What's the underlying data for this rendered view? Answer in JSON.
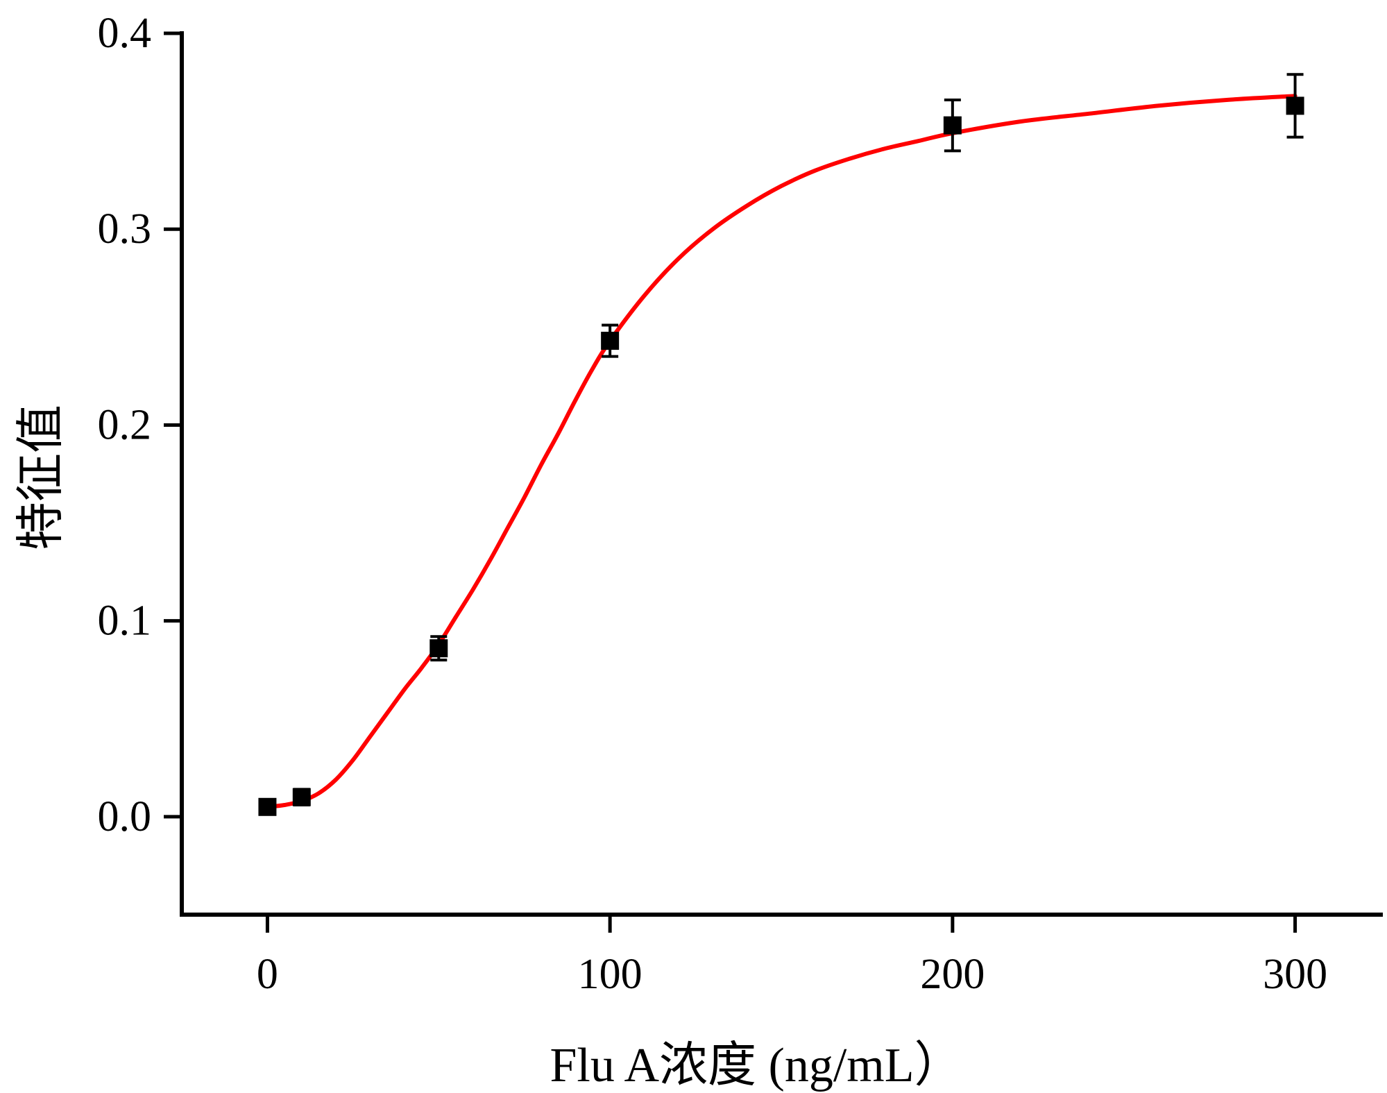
{
  "chart_data": {
    "type": "scatter",
    "title": "",
    "xlabel": "Flu A浓度 (ng/mL）",
    "ylabel": "特征值",
    "xlim": [
      -25,
      325
    ],
    "ylim": [
      -0.05,
      0.4
    ],
    "x_ticks": [
      0,
      100,
      200,
      300
    ],
    "x_tick_labels": [
      "0",
      "100",
      "200",
      "300"
    ],
    "y_ticks": [
      0.0,
      0.1,
      0.2,
      0.3,
      0.4
    ],
    "y_tick_labels": [
      "0.0",
      "0.1",
      "0.2",
      "0.3",
      "0.4"
    ],
    "grid": false,
    "legend": "none",
    "colors": {
      "points": "#000000",
      "fit_curve": "#ff0000",
      "axes": "#000000"
    },
    "series": [
      {
        "x": [
          0,
          10,
          50,
          100,
          200,
          300
        ],
        "y": [
          0.005,
          0.01,
          0.086,
          0.243,
          0.353,
          0.363
        ],
        "error": [
          0.003,
          0.004,
          0.006,
          0.008,
          0.013,
          0.016
        ],
        "marker": "square"
      }
    ],
    "fit_curve": {
      "points": [
        [
          0,
          0.005
        ],
        [
          5,
          0.006
        ],
        [
          10,
          0.008
        ],
        [
          15,
          0.012
        ],
        [
          20,
          0.019
        ],
        [
          25,
          0.029
        ],
        [
          30,
          0.041
        ],
        [
          35,
          0.053
        ],
        [
          40,
          0.065
        ],
        [
          45,
          0.076
        ],
        [
          50,
          0.088
        ],
        [
          55,
          0.102
        ],
        [
          60,
          0.116
        ],
        [
          65,
          0.131
        ],
        [
          70,
          0.147
        ],
        [
          75,
          0.163
        ],
        [
          80,
          0.18
        ],
        [
          85,
          0.196
        ],
        [
          90,
          0.213
        ],
        [
          95,
          0.229
        ],
        [
          100,
          0.243
        ],
        [
          110,
          0.266
        ],
        [
          120,
          0.285
        ],
        [
          130,
          0.3
        ],
        [
          140,
          0.312
        ],
        [
          150,
          0.322
        ],
        [
          160,
          0.33
        ],
        [
          170,
          0.336
        ],
        [
          180,
          0.341
        ],
        [
          190,
          0.345
        ],
        [
          200,
          0.349
        ],
        [
          220,
          0.355
        ],
        [
          240,
          0.359
        ],
        [
          260,
          0.363
        ],
        [
          280,
          0.366
        ],
        [
          300,
          0.368
        ]
      ]
    }
  }
}
